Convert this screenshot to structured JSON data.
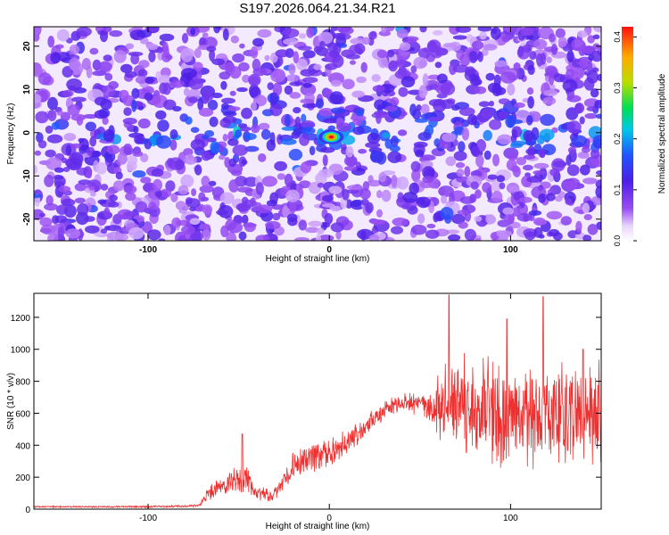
{
  "title": "S197.2026.064.21.34.R21",
  "chart_data": [
    {
      "type": "heatmap",
      "title": "S197.2026.064.21.34.R21",
      "xlabel": "Height of straight line (km)",
      "ylabel": "Frequency (Hz)",
      "xlim": [
        -163,
        150
      ],
      "ylim": [
        -25,
        24.5
      ],
      "xticks": [
        -100,
        0,
        100
      ],
      "yticks": [
        -20,
        -10,
        0,
        10,
        20
      ],
      "xtick_labels": [
        "-100",
        "0",
        "100"
      ],
      "ytick_labels": [
        "-20",
        "-10",
        "0",
        "10",
        "20"
      ],
      "colorbar": {
        "label": "Normalized spectral amplitude",
        "range": [
          0,
          0.42
        ],
        "ticks": [
          0.0,
          0.1,
          0.2,
          0.3,
          0.4
        ],
        "tick_labels": [
          "0.0",
          "0.1",
          "0.2",
          "0.3",
          "0.4"
        ],
        "colormap": "white-purple-blue-green-yellow-red"
      },
      "peak": {
        "x": 1,
        "y": -1,
        "value": 0.42
      },
      "noise_floor": 0.06,
      "signal_band_center_hz": 0
    },
    {
      "type": "line",
      "xlabel": "Height of straight line (km)",
      "ylabel": "SNR (10 * v/v)",
      "xlim": [
        -163,
        150
      ],
      "ylim": [
        0,
        1350
      ],
      "xticks": [
        -100,
        0,
        100
      ],
      "yticks": [
        0,
        200,
        400,
        600,
        800,
        1000,
        1200
      ],
      "xtick_labels": [
        "-100",
        "0",
        "100"
      ],
      "ytick_labels": [
        "0",
        "200",
        "400",
        "600",
        "800",
        "1000",
        "1200"
      ],
      "series_color": "#ee3030",
      "trend": [
        {
          "x": -163,
          "y": 15
        },
        {
          "x": -100,
          "y": 15
        },
        {
          "x": -72,
          "y": 20
        },
        {
          "x": -66,
          "y": 110
        },
        {
          "x": -56,
          "y": 150
        },
        {
          "x": -48,
          "y": 210
        },
        {
          "x": -40,
          "y": 100
        },
        {
          "x": -32,
          "y": 75
        },
        {
          "x": -26,
          "y": 150
        },
        {
          "x": -20,
          "y": 270
        },
        {
          "x": -10,
          "y": 330
        },
        {
          "x": 0,
          "y": 350
        },
        {
          "x": 10,
          "y": 410
        },
        {
          "x": 20,
          "y": 520
        },
        {
          "x": 30,
          "y": 620
        },
        {
          "x": 40,
          "y": 660
        },
        {
          "x": 50,
          "y": 660
        },
        {
          "x": 60,
          "y": 650
        },
        {
          "x": 80,
          "y": 620
        },
        {
          "x": 100,
          "y": 600
        },
        {
          "x": 120,
          "y": 590
        },
        {
          "x": 150,
          "y": 580
        }
      ],
      "noise_amplitude": [
        {
          "x": -163,
          "y": 5
        },
        {
          "x": -72,
          "y": 8
        },
        {
          "x": -66,
          "y": 60
        },
        {
          "x": -48,
          "y": 120
        },
        {
          "x": -40,
          "y": 60
        },
        {
          "x": -30,
          "y": 40
        },
        {
          "x": -20,
          "y": 100
        },
        {
          "x": 0,
          "y": 110
        },
        {
          "x": 20,
          "y": 90
        },
        {
          "x": 40,
          "y": 60
        },
        {
          "x": 55,
          "y": 120
        },
        {
          "x": 62,
          "y": 280
        },
        {
          "x": 70,
          "y": 380
        },
        {
          "x": 150,
          "y": 380
        }
      ],
      "annotated_peaks": [
        {
          "x": 66,
          "y": 1340
        },
        {
          "x": 118,
          "y": 1330
        },
        {
          "x": 98,
          "y": 1190
        },
        {
          "x": 140,
          "y": 1000
        },
        {
          "x": -48,
          "y": 470
        }
      ]
    }
  ]
}
